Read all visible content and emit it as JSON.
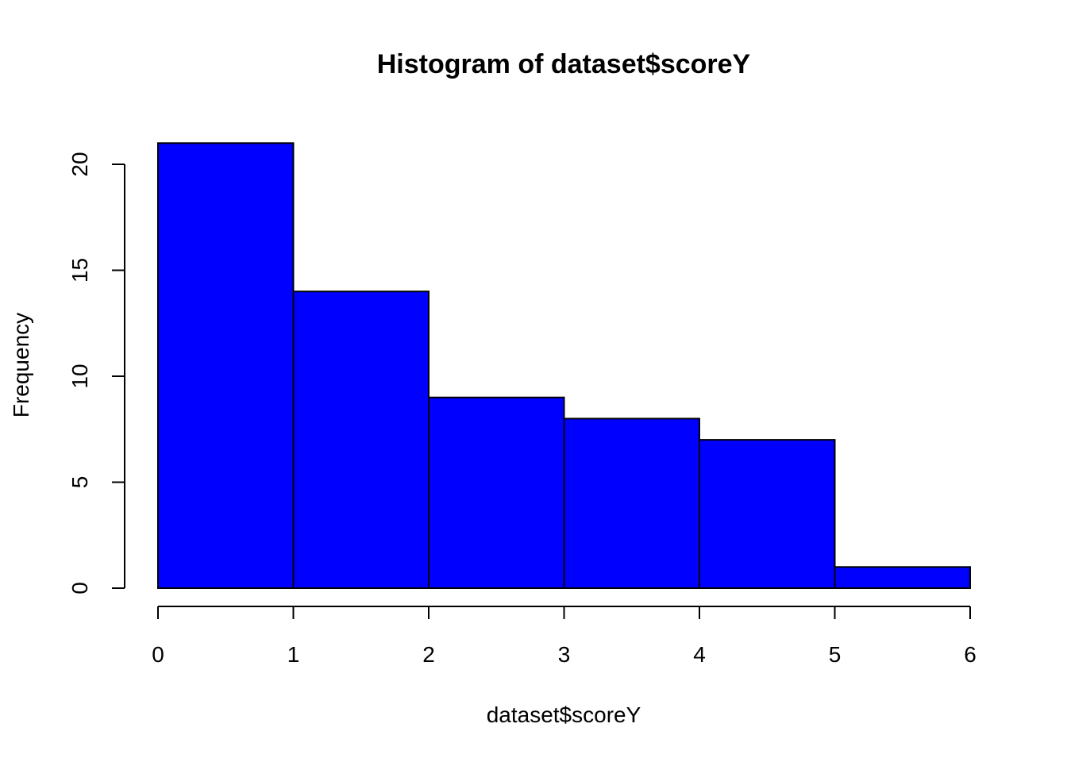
{
  "chart_data": {
    "type": "bar",
    "subtype": "histogram",
    "title": "Histogram of dataset$scoreY",
    "xlabel": "dataset$scoreY",
    "ylabel": "Frequency",
    "bins": [
      {
        "from": 0,
        "to": 1,
        "count": 21
      },
      {
        "from": 1,
        "to": 2,
        "count": 14
      },
      {
        "from": 2,
        "to": 3,
        "count": 9
      },
      {
        "from": 3,
        "to": 4,
        "count": 8
      },
      {
        "from": 4,
        "to": 5,
        "count": 7
      },
      {
        "from": 5,
        "to": 6,
        "count": 1
      }
    ],
    "xlim": [
      0,
      6
    ],
    "ylim": [
      0,
      21
    ],
    "xticks": [
      "0",
      "1",
      "2",
      "3",
      "4",
      "5",
      "6"
    ],
    "yticks": [
      "0",
      "5",
      "10",
      "15",
      "20"
    ],
    "grid": false,
    "bar_color": "#0000ff",
    "edge_color": "#000000"
  }
}
